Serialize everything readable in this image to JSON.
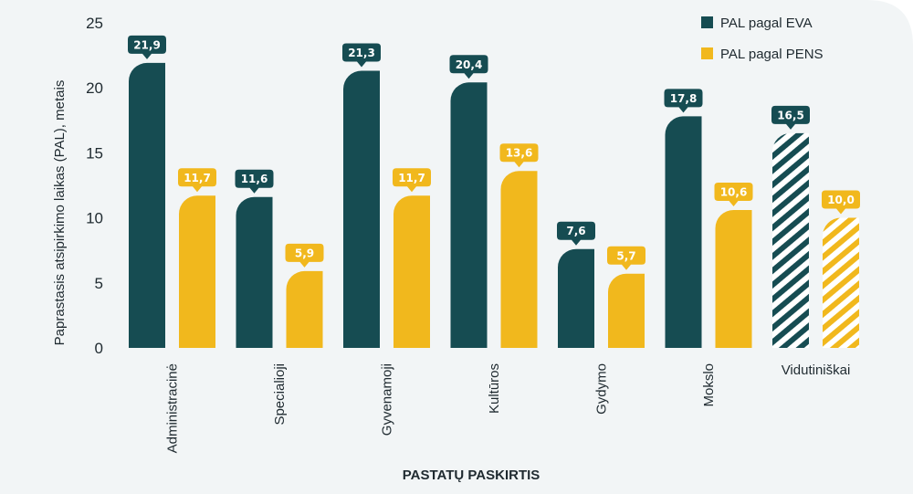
{
  "chart_data": {
    "type": "bar",
    "title": "",
    "xlabel": "PASTATŲ PASKIRTIS",
    "ylabel": "Paprastasis atsipirkimo laikas (PAL), metais",
    "ylim": [
      0,
      25
    ],
    "yticks": [
      "0",
      "5",
      "10",
      "15",
      "20",
      "25"
    ],
    "categories": [
      "Administracinė",
      "Specialioji",
      "Gyvenamoji",
      "Kultūros",
      "Gydymo",
      "Mokslo",
      "Vidutiniškai"
    ],
    "series": [
      {
        "name": "PAL pagal EVA",
        "color": "#164c52",
        "values": [
          21.9,
          11.6,
          21.3,
          20.4,
          7.6,
          17.8,
          16.5
        ],
        "labels": [
          "21,9",
          "11,6",
          "21,3",
          "20,4",
          "7,6",
          "17,8",
          "16,5"
        ]
      },
      {
        "name": "PAL pagal PENS",
        "color": "#f1b81d",
        "values": [
          11.7,
          5.9,
          11.7,
          13.6,
          5.7,
          10.6,
          10.0
        ],
        "labels": [
          "11,7",
          "5,9",
          "11,7",
          "13,6",
          "5,7",
          "10,6",
          "10,0"
        ]
      }
    ],
    "hatched_category": "Vidutiniškai",
    "legend_position": "top-right",
    "grid": false
  },
  "colors": {
    "background": "#f2f5f6",
    "text": "#1f2a30"
  }
}
